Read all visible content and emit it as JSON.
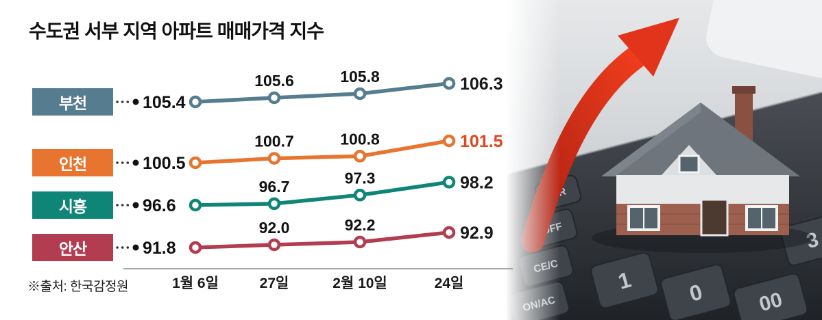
{
  "title": "수도권 서부 지역 아파트 매매가격 지수",
  "source": "※출처: 한국감정원",
  "chart_data": {
    "type": "line",
    "title": "수도권 서부 지역 아파트 매매가격 지수",
    "x_labels": [
      "1월 6일",
      "27일",
      "2월 10일",
      "24일"
    ],
    "series": [
      {
        "name": "부천",
        "color": "#567c90",
        "last_label_color": "#1a1a1a",
        "values": [
          105.4,
          105.6,
          105.8,
          106.3
        ]
      },
      {
        "name": "인천",
        "color": "#e8752f",
        "last_label_color": "#e8431b",
        "values": [
          100.5,
          100.7,
          100.8,
          101.5
        ]
      },
      {
        "name": "시흥",
        "color": "#0f8577",
        "last_label_color": "#1a1a1a",
        "values": [
          96.6,
          96.7,
          97.3,
          98.2
        ]
      },
      {
        "name": "안산",
        "color": "#b23c50",
        "last_label_color": "#1a1a1a",
        "values": [
          91.8,
          92.0,
          92.2,
          92.9
        ]
      }
    ],
    "legend_position": "left",
    "grid": false,
    "value_labels_shown": true
  },
  "illustration": {
    "description": "house standing on calculator keypad with rising red arrow",
    "calculator_keys": [
      "MR",
      "OFF",
      "CE/C",
      "ON/AC",
      "1",
      "0",
      "00",
      "3"
    ],
    "arrow_color": "#e03318"
  }
}
